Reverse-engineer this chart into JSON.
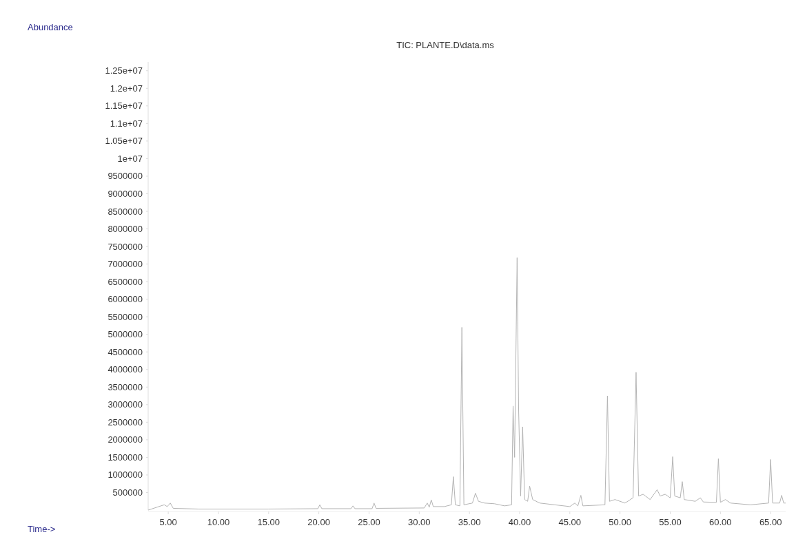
{
  "chart_data": {
    "type": "line",
    "title": "TIC: PLANTE.D\\data.ms",
    "annotations": [
      "Time->"
    ],
    "ylabel": "Abundance",
    "xlim": [
      3,
      66.5
    ],
    "xticks": [
      {
        "value": 5,
        "label": "5.00"
      },
      {
        "value": 10,
        "label": "10.00"
      },
      {
        "value": 15,
        "label": "15.00"
      },
      {
        "value": 20,
        "label": "20.00"
      },
      {
        "value": 25,
        "label": "25.00"
      },
      {
        "value": 30,
        "label": "30.00"
      },
      {
        "value": 35,
        "label": "35.00"
      },
      {
        "value": 40,
        "label": "40.00"
      },
      {
        "value": 45,
        "label": "45.00"
      },
      {
        "value": 50,
        "label": "50.00"
      },
      {
        "value": 55,
        "label": "55.00"
      },
      {
        "value": 60,
        "label": "60.00"
      },
      {
        "value": 65,
        "label": "65.00"
      }
    ],
    "ylim": [
      0,
      12750000
    ],
    "yticks": [
      500000,
      1000000,
      1500000,
      2000000,
      2500000,
      3000000,
      3500000,
      4000000,
      4500000,
      5000000,
      5500000,
      6000000,
      6500000,
      7000000,
      7500000,
      8000000,
      8500000,
      9000000,
      9500000,
      {
        "value": 10000000,
        "label": "1e+07"
      },
      {
        "value": 10500000,
        "label": "1.05e+07"
      },
      {
        "value": 11000000,
        "label": "1.1e+07"
      },
      {
        "value": 11500000,
        "label": "1.15e+07"
      },
      {
        "value": 12000000,
        "label": "1.2e+07"
      },
      {
        "value": 12500000,
        "label": "1.25e+07"
      }
    ],
    "grid": false,
    "series": [
      {
        "color": "#b4b4b4",
        "x": [
          3.0,
          4.6,
          4.9,
          5.2,
          5.5,
          8,
          15,
          19.9,
          20.1,
          20.3,
          23.2,
          23.4,
          23.6,
          25.3,
          25.5,
          25.7,
          30.5,
          30.8,
          31.0,
          31.2,
          31.4,
          32.5,
          33.2,
          33.4,
          33.6,
          34.05,
          34.25,
          34.45,
          35.3,
          35.6,
          35.9,
          36.5,
          37.5,
          38.5,
          39.2,
          39.35,
          39.5,
          39.75,
          39.9,
          40.1,
          40.3,
          40.5,
          40.8,
          41.0,
          41.3,
          42.0,
          43.5,
          45.0,
          45.5,
          45.8,
          46.1,
          46.3,
          48.5,
          48.75,
          48.95,
          49.5,
          50.5,
          51.3,
          51.6,
          51.85,
          52.3,
          53.0,
          53.7,
          54.0,
          54.5,
          55.0,
          55.25,
          55.45,
          56.0,
          56.2,
          56.4,
          57.5,
          58.0,
          58.3,
          59.6,
          59.8,
          60.0,
          60.5,
          61.0,
          63,
          64.8,
          65.0,
          65.2,
          65.9,
          66.1,
          66.3,
          66.5
        ],
        "values": [
          0,
          150000,
          100000,
          200000,
          50000,
          30000,
          30000,
          40000,
          150000,
          40000,
          40000,
          120000,
          40000,
          40000,
          200000,
          50000,
          60000,
          200000,
          80000,
          290000,
          100000,
          100000,
          150000,
          950000,
          150000,
          120000,
          5200000,
          150000,
          200000,
          480000,
          250000,
          200000,
          180000,
          120000,
          150000,
          2960000,
          1500000,
          7180000,
          2860000,
          400000,
          2370000,
          300000,
          250000,
          680000,
          300000,
          200000,
          150000,
          100000,
          200000,
          120000,
          420000,
          120000,
          150000,
          3250000,
          250000,
          300000,
          200000,
          350000,
          3920000,
          400000,
          450000,
          300000,
          580000,
          400000,
          450000,
          350000,
          1520000,
          400000,
          350000,
          810000,
          300000,
          250000,
          350000,
          230000,
          220000,
          1460000,
          220000,
          300000,
          200000,
          150000,
          200000,
          1440000,
          200000,
          200000,
          420000,
          200000,
          200000
        ]
      }
    ]
  }
}
